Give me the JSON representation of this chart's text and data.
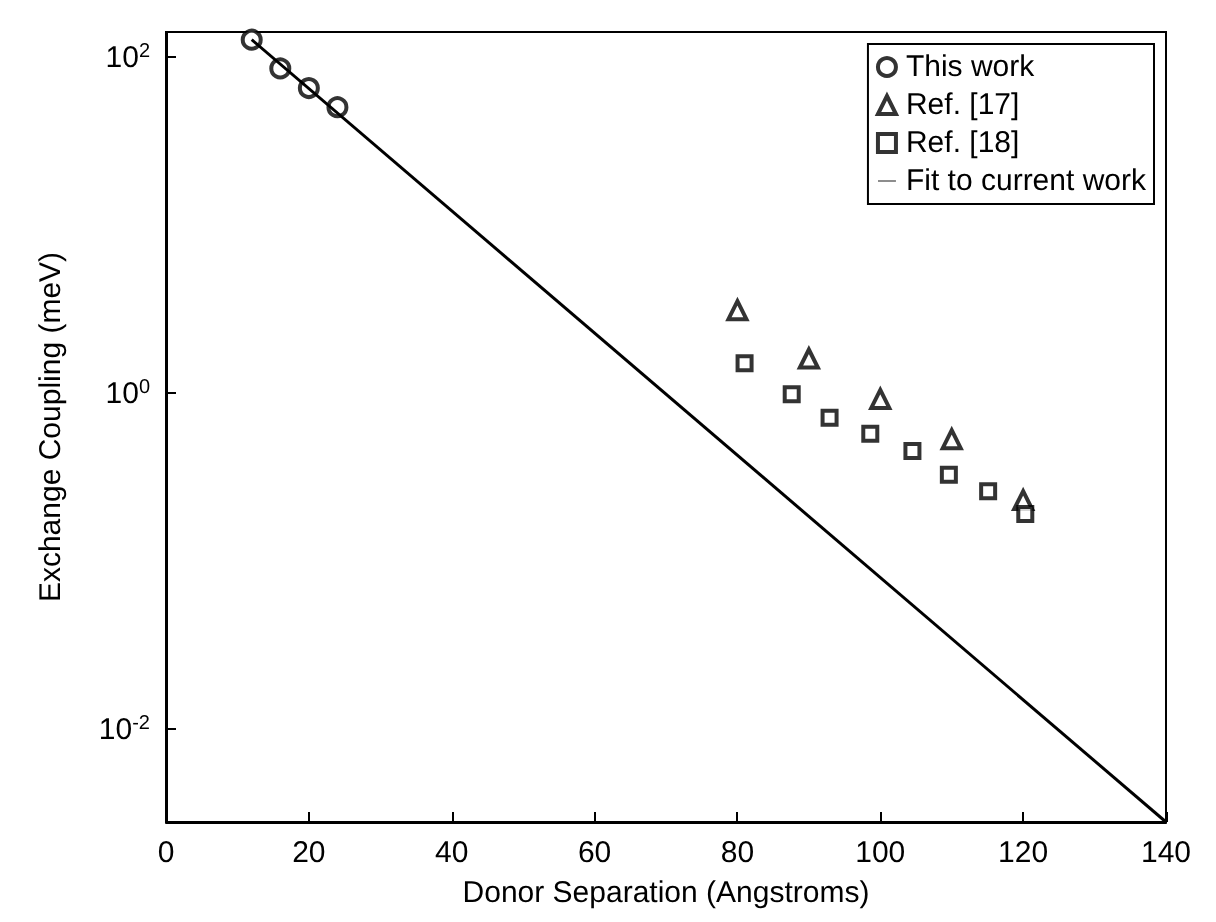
{
  "chart_data": {
    "type": "scatter",
    "xlabel": "Donor Separation (Angstroms)",
    "ylabel": "Exchange Coupling (meV)",
    "log": "y",
    "xlim": [
      0,
      140
    ],
    "xticks": [
      0,
      20,
      40,
      60,
      80,
      100,
      120,
      140
    ],
    "ylim": [
      0.0028,
      140
    ],
    "yticks": [
      {
        "value": 0.01,
        "label": "10$^{-2}$"
      },
      {
        "value": 1,
        "label": "10$^{0}$"
      },
      {
        "value": 100,
        "label": "10$^{2}$"
      }
    ],
    "grid": false,
    "legend": "top right",
    "series": [
      {
        "name": "This work",
        "marker": "circle",
        "color": "#000000",
        "x": [
          12,
          16,
          20,
          24
        ],
        "values": [
          126,
          85,
          65,
          50
        ]
      },
      {
        "name": "Ref. [17]",
        "marker": "triangle",
        "color": "#000000",
        "x": [
          80,
          90,
          100,
          110,
          120
        ],
        "values": [
          3.1,
          1.6,
          0.92,
          0.53,
          0.23
        ]
      },
      {
        "name": "Ref. [18]",
        "marker": "square",
        "color": "#000000",
        "x": [
          81,
          87.6,
          92.9,
          98.6,
          104.5,
          109.6,
          115.1,
          120.3
        ],
        "values": [
          1.5,
          0.98,
          0.71,
          0.57,
          0.45,
          0.325,
          0.26,
          0.19
        ]
      },
      {
        "name": "Fit to current work",
        "type": "line",
        "marker": "none",
        "line_style": "solid",
        "color": "#000000",
        "x": [
          12,
          140
        ],
        "values": [
          126,
          0.0028
        ]
      }
    ]
  }
}
